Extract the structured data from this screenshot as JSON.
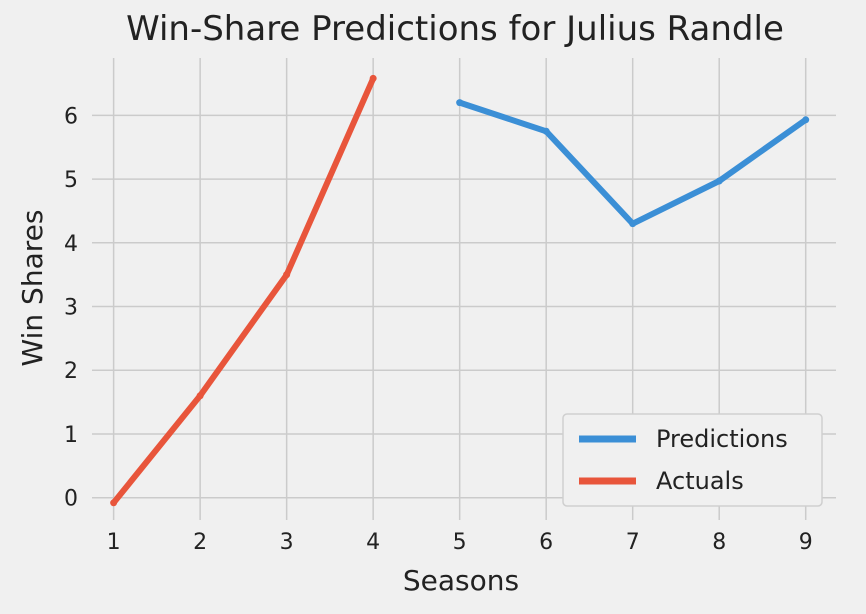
{
  "chart_data": {
    "type": "line",
    "title": "Win-Share Predictions for Julius Randle",
    "xlabel": "Seasons",
    "ylabel": "Win Shares",
    "xlim": [
      0.75,
      9.35
    ],
    "ylim": [
      -0.35,
      6.9
    ],
    "xticks": [
      1,
      2,
      3,
      4,
      5,
      6,
      7,
      8,
      9
    ],
    "yticks": [
      0,
      1,
      2,
      3,
      4,
      5,
      6
    ],
    "grid": true,
    "legend_position": "lower right",
    "series": [
      {
        "name": "Predictions",
        "color": "#3b8fd6",
        "x": [
          5,
          6,
          7,
          8,
          9
        ],
        "y": [
          6.2,
          5.75,
          4.3,
          4.97,
          5.93
        ]
      },
      {
        "name": "Actuals",
        "color": "#e8553b",
        "x": [
          1,
          2,
          3,
          4
        ],
        "y": [
          -0.08,
          1.6,
          3.5,
          6.58
        ]
      }
    ]
  }
}
